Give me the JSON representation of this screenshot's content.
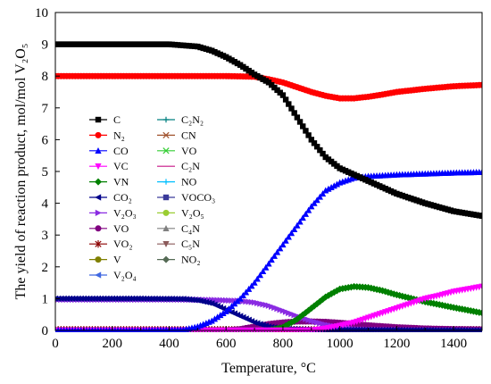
{
  "chart_data": {
    "type": "line",
    "xlabel": "Temperature, °C",
    "ylabel": "The yield of reaction product, mol/mol V₂O₅",
    "xlim": [
      0,
      1500
    ],
    "ylim": [
      0,
      10
    ],
    "xticks": [
      0,
      200,
      400,
      600,
      800,
      1000,
      1200,
      1400
    ],
    "yticks": [
      0,
      1,
      2,
      3,
      4,
      5,
      6,
      7,
      8,
      9,
      10
    ],
    "grid": false,
    "legend_position": "left-middle",
    "series": [
      {
        "name": "C",
        "color": "#000000",
        "marker": "square",
        "points": [
          [
            0,
            9.0
          ],
          [
            100,
            9.0
          ],
          [
            200,
            9.0
          ],
          [
            300,
            9.0
          ],
          [
            400,
            9.0
          ],
          [
            500,
            8.93
          ],
          [
            550,
            8.8
          ],
          [
            600,
            8.6
          ],
          [
            650,
            8.35
          ],
          [
            700,
            8.05
          ],
          [
            750,
            7.8
          ],
          [
            800,
            7.4
          ],
          [
            850,
            6.7
          ],
          [
            900,
            6.0
          ],
          [
            950,
            5.45
          ],
          [
            1000,
            5.1
          ],
          [
            1050,
            4.9
          ],
          [
            1100,
            4.7
          ],
          [
            1150,
            4.5
          ],
          [
            1200,
            4.3
          ],
          [
            1300,
            4.0
          ],
          [
            1400,
            3.75
          ],
          [
            1500,
            3.6
          ]
        ]
      },
      {
        "name": "N₂",
        "color": "#ff0000",
        "marker": "circle",
        "points": [
          [
            0,
            8.0
          ],
          [
            200,
            8.0
          ],
          [
            400,
            8.0
          ],
          [
            600,
            8.0
          ],
          [
            700,
            7.98
          ],
          [
            750,
            7.9
          ],
          [
            800,
            7.8
          ],
          [
            850,
            7.65
          ],
          [
            900,
            7.5
          ],
          [
            950,
            7.38
          ],
          [
            1000,
            7.3
          ],
          [
            1050,
            7.3
          ],
          [
            1100,
            7.35
          ],
          [
            1150,
            7.42
          ],
          [
            1200,
            7.5
          ],
          [
            1300,
            7.6
          ],
          [
            1400,
            7.68
          ],
          [
            1500,
            7.72
          ]
        ]
      },
      {
        "name": "CO",
        "color": "#0000ff",
        "marker": "triangle-up",
        "points": [
          [
            0,
            0
          ],
          [
            300,
            0
          ],
          [
            450,
            0.02
          ],
          [
            500,
            0.12
          ],
          [
            550,
            0.3
          ],
          [
            600,
            0.6
          ],
          [
            650,
            1.0
          ],
          [
            700,
            1.5
          ],
          [
            750,
            2.1
          ],
          [
            800,
            2.7
          ],
          [
            850,
            3.3
          ],
          [
            900,
            3.9
          ],
          [
            950,
            4.4
          ],
          [
            1000,
            4.65
          ],
          [
            1050,
            4.8
          ],
          [
            1100,
            4.85
          ],
          [
            1200,
            4.9
          ],
          [
            1300,
            4.93
          ],
          [
            1400,
            4.96
          ],
          [
            1500,
            4.98
          ]
        ]
      },
      {
        "name": "VC",
        "color": "#ff00ff",
        "marker": "triangle-down",
        "points": [
          [
            0,
            0
          ],
          [
            900,
            0
          ],
          [
            950,
            0.06
          ],
          [
            1000,
            0.15
          ],
          [
            1050,
            0.25
          ],
          [
            1100,
            0.4
          ],
          [
            1150,
            0.55
          ],
          [
            1200,
            0.7
          ],
          [
            1250,
            0.85
          ],
          [
            1300,
            1.0
          ],
          [
            1350,
            1.1
          ],
          [
            1400,
            1.22
          ],
          [
            1450,
            1.3
          ],
          [
            1500,
            1.38
          ]
        ]
      },
      {
        "name": "VN",
        "color": "#008000",
        "marker": "diamond",
        "points": [
          [
            0,
            0
          ],
          [
            750,
            0
          ],
          [
            800,
            0.1
          ],
          [
            850,
            0.35
          ],
          [
            900,
            0.7
          ],
          [
            950,
            1.05
          ],
          [
            1000,
            1.3
          ],
          [
            1050,
            1.38
          ],
          [
            1100,
            1.35
          ],
          [
            1150,
            1.25
          ],
          [
            1200,
            1.12
          ],
          [
            1300,
            0.9
          ],
          [
            1400,
            0.72
          ],
          [
            1500,
            0.55
          ]
        ]
      },
      {
        "name": "CO₂",
        "color": "#00008b",
        "marker": "triangle-left",
        "points": [
          [
            0,
            1.0
          ],
          [
            300,
            1.0
          ],
          [
            450,
            0.99
          ],
          [
            500,
            0.95
          ],
          [
            550,
            0.85
          ],
          [
            600,
            0.65
          ],
          [
            650,
            0.45
          ],
          [
            700,
            0.25
          ],
          [
            750,
            0.12
          ],
          [
            800,
            0.05
          ],
          [
            900,
            0.02
          ],
          [
            1500,
            0.0
          ]
        ]
      },
      {
        "name": "V₂O₃",
        "color": "#8a2be2",
        "marker": "triangle-right",
        "points": [
          [
            0,
            0.97
          ],
          [
            400,
            0.97
          ],
          [
            550,
            0.96
          ],
          [
            650,
            0.93
          ],
          [
            700,
            0.88
          ],
          [
            750,
            0.78
          ],
          [
            800,
            0.62
          ],
          [
            850,
            0.45
          ],
          [
            900,
            0.3
          ],
          [
            950,
            0.18
          ],
          [
            1000,
            0.1
          ],
          [
            1050,
            0.04
          ],
          [
            1100,
            0.02
          ],
          [
            1200,
            0.01
          ],
          [
            1500,
            0.0
          ]
        ]
      },
      {
        "name": "VO",
        "color": "#800080",
        "marker": "circle",
        "points": [
          [
            0,
            0
          ],
          [
            600,
            0
          ],
          [
            650,
            0.04
          ],
          [
            700,
            0.12
          ],
          [
            750,
            0.2
          ],
          [
            800,
            0.25
          ],
          [
            850,
            0.28
          ],
          [
            900,
            0.28
          ],
          [
            950,
            0.27
          ],
          [
            1000,
            0.24
          ],
          [
            1050,
            0.2
          ],
          [
            1100,
            0.16
          ],
          [
            1200,
            0.1
          ],
          [
            1300,
            0.06
          ],
          [
            1400,
            0.04
          ],
          [
            1500,
            0.03
          ]
        ]
      },
      {
        "name": "VO₂",
        "color": "#8b0000",
        "marker": "star",
        "points": [
          [
            0,
            0.02
          ],
          [
            1500,
            0.02
          ]
        ]
      },
      {
        "name": "V",
        "color": "#808000",
        "marker": "circle",
        "points": [
          [
            0,
            0.0
          ],
          [
            1500,
            0.0
          ]
        ]
      },
      {
        "name": "V₂O₄",
        "color": "#4169e1",
        "marker": "triangle-left",
        "points": [
          [
            0,
            0.01
          ],
          [
            1500,
            0.01
          ]
        ]
      },
      {
        "name": "C₂N₂",
        "color": "#008080",
        "marker": "plus",
        "points": [
          [
            0,
            0.0
          ],
          [
            1500,
            0.0
          ]
        ]
      },
      {
        "name": "CN",
        "color": "#a0522d",
        "marker": "cross",
        "points": [
          [
            0,
            0.0
          ],
          [
            1500,
            0.0
          ]
        ]
      },
      {
        "name": "VO",
        "color": "#32cd32",
        "marker": "cross",
        "points": [
          [
            0,
            0.0
          ],
          [
            1500,
            0.0
          ]
        ]
      },
      {
        "name": "C₂N",
        "color": "#c71585",
        "marker": "none",
        "points": [
          [
            0,
            0.0
          ],
          [
            1500,
            0.0
          ]
        ]
      },
      {
        "name": "NO",
        "color": "#00bfff",
        "marker": "plus",
        "points": [
          [
            0,
            0.0
          ],
          [
            1500,
            0.0
          ]
        ]
      },
      {
        "name": "VOCO₃",
        "color": "#3a3a9a",
        "marker": "square",
        "points": [
          [
            0,
            0.0
          ],
          [
            1500,
            0.0
          ]
        ]
      },
      {
        "name": "V₂O₅",
        "color": "#9acd32",
        "marker": "circle",
        "points": [
          [
            0,
            0.0
          ],
          [
            1500,
            0.0
          ]
        ]
      },
      {
        "name": "C₄N",
        "color": "#808080",
        "marker": "triangle-up",
        "points": [
          [
            0,
            0.0
          ],
          [
            1500,
            0.0
          ]
        ]
      },
      {
        "name": "C₅N",
        "color": "#8b5a5a",
        "marker": "triangle-down",
        "points": [
          [
            0,
            0.0
          ],
          [
            1500,
            0.0
          ]
        ]
      },
      {
        "name": "NO₂",
        "color": "#556b55",
        "marker": "diamond",
        "points": [
          [
            0,
            0.0
          ],
          [
            1500,
            0.0
          ]
        ]
      }
    ]
  }
}
